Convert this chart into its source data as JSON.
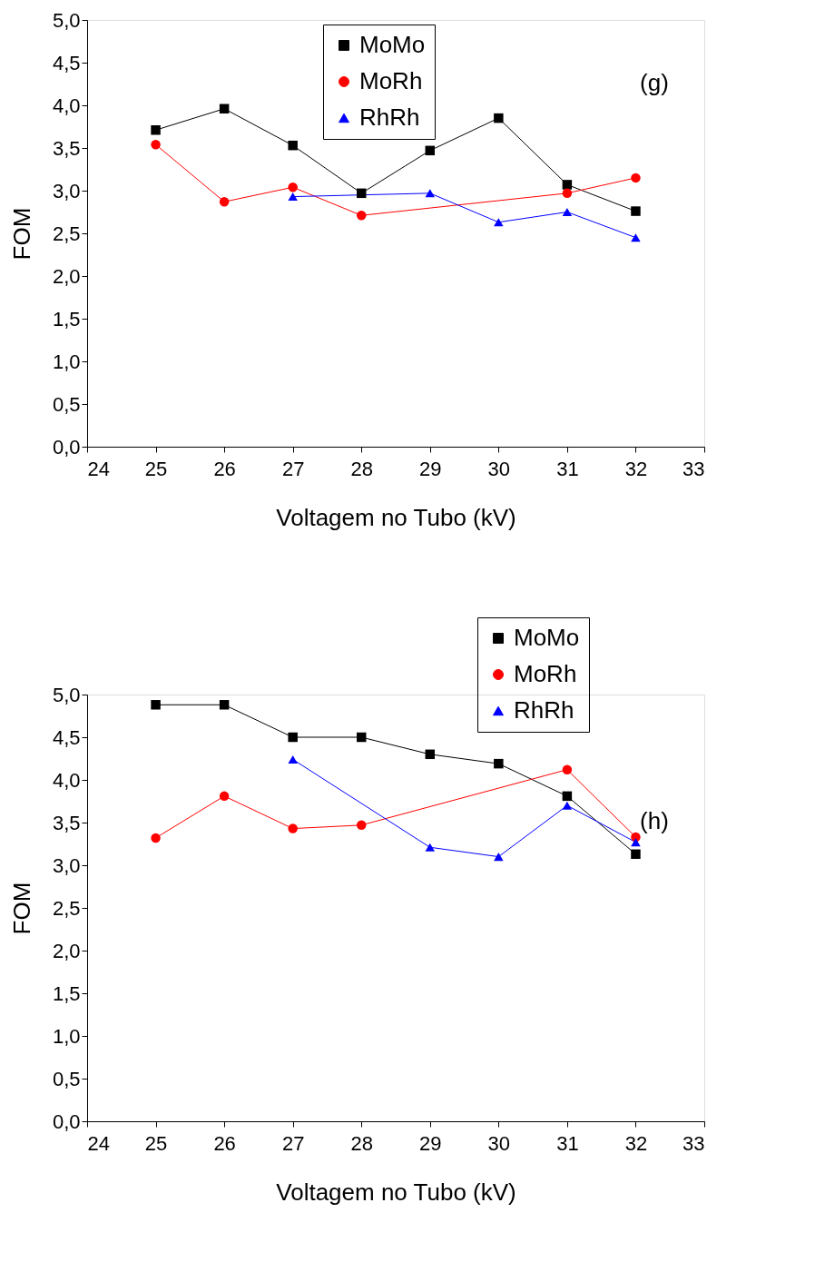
{
  "chart_data": [
    {
      "type": "line",
      "xlabel": "Voltagem no Tubo (kV)",
      "ylabel": "FOM",
      "annotations": [
        "(g)"
      ],
      "legend": "top",
      "grid": false,
      "line_style": "solid",
      "xlim": [
        24,
        33
      ],
      "xticks": [
        24,
        25,
        26,
        27,
        28,
        29,
        30,
        31,
        32,
        33
      ],
      "ylim": [
        0,
        5
      ],
      "yticks": [
        {
          "value": 0,
          "label": "0,0"
        },
        {
          "value": 0.5,
          "label": "0,5"
        },
        {
          "value": 1,
          "label": "1,0"
        },
        {
          "value": 1.5,
          "label": "1,5"
        },
        {
          "value": 2,
          "label": "2,0"
        },
        {
          "value": 2.5,
          "label": "2,5"
        },
        {
          "value": 3,
          "label": "3,0"
        },
        {
          "value": 3.5,
          "label": "3,5"
        },
        {
          "value": 4,
          "label": "4,0"
        },
        {
          "value": 4.5,
          "label": "4,5"
        },
        {
          "value": 5,
          "label": "5,0"
        }
      ],
      "series": [
        {
          "name": "MoMo",
          "color": "#000000",
          "marker": "square",
          "x": [
            25,
            26,
            27,
            28,
            29,
            30,
            31,
            32
          ],
          "values": [
            3.71,
            3.96,
            3.53,
            2.97,
            3.47,
            3.85,
            3.07,
            2.76
          ]
        },
        {
          "name": "MoRh",
          "color": "#ff0000",
          "marker": "circle",
          "x": [
            25,
            26,
            27,
            28,
            31,
            32
          ],
          "values": [
            3.54,
            2.87,
            3.04,
            2.71,
            2.97,
            3.15
          ]
        },
        {
          "name": "RhRh",
          "color": "#0000ff",
          "marker": "triangle",
          "x": [
            27,
            29,
            30,
            31,
            32
          ],
          "values": [
            2.93,
            2.97,
            2.63,
            2.75,
            2.45
          ]
        }
      ]
    },
    {
      "type": "line",
      "xlabel": "Voltagem no Tubo (kV)",
      "ylabel": "FOM",
      "annotations": [
        "(h)"
      ],
      "legend": "top right",
      "grid": false,
      "line_style": "solid",
      "xlim": [
        24,
        33
      ],
      "xticks": [
        24,
        25,
        26,
        27,
        28,
        29,
        30,
        31,
        32,
        33
      ],
      "ylim": [
        0,
        5
      ],
      "yticks": [
        {
          "value": 0,
          "label": "0,0"
        },
        {
          "value": 0.5,
          "label": "0,5"
        },
        {
          "value": 1,
          "label": "1,0"
        },
        {
          "value": 1.5,
          "label": "1,5"
        },
        {
          "value": 2,
          "label": "2,0"
        },
        {
          "value": 2.5,
          "label": "2,5"
        },
        {
          "value": 3,
          "label": "3,0"
        },
        {
          "value": 3.5,
          "label": "3,5"
        },
        {
          "value": 4,
          "label": "4,0"
        },
        {
          "value": 4.5,
          "label": "4,5"
        },
        {
          "value": 5,
          "label": "5,0"
        }
      ],
      "series": [
        {
          "name": "MoMo",
          "color": "#000000",
          "marker": "square",
          "x": [
            25,
            26,
            27,
            28,
            29,
            30,
            31,
            32
          ],
          "values": [
            4.88,
            4.88,
            4.5,
            4.5,
            4.3,
            4.19,
            3.81,
            3.13
          ]
        },
        {
          "name": "MoRh",
          "color": "#ff0000",
          "marker": "circle",
          "x": [
            25,
            26,
            27,
            28,
            31,
            32
          ],
          "values": [
            3.32,
            3.81,
            3.43,
            3.47,
            4.12,
            3.33
          ]
        },
        {
          "name": "RhRh",
          "color": "#0000ff",
          "marker": "triangle",
          "x": [
            27,
            29,
            30,
            31,
            32
          ],
          "values": [
            4.24,
            3.21,
            3.1,
            3.7,
            3.27
          ]
        }
      ]
    }
  ]
}
